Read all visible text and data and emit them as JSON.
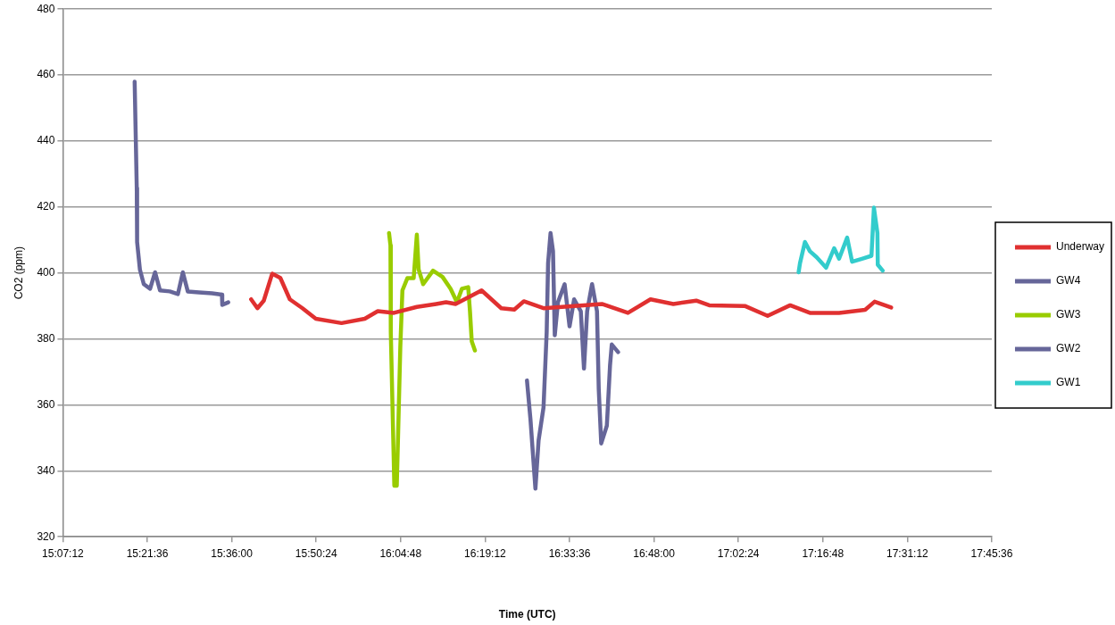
{
  "chart_data": {
    "type": "line",
    "xlabel": "Time (UTC)",
    "ylabel": "CO2 (ppm)",
    "xlim": [
      15.12,
      17.76
    ],
    "xticks": [
      {
        "value": 15.12,
        "label": "15:07:12"
      },
      {
        "value": 15.36,
        "label": "15:21:36"
      },
      {
        "value": 15.6,
        "label": "15:36:00"
      },
      {
        "value": 15.84,
        "label": "15:50:24"
      },
      {
        "value": 16.08,
        "label": "16:04:48"
      },
      {
        "value": 16.32,
        "label": "16:19:12"
      },
      {
        "value": 16.56,
        "label": "16:33:36"
      },
      {
        "value": 16.8,
        "label": "16:48:00"
      },
      {
        "value": 17.04,
        "label": "17:02:24"
      },
      {
        "value": 17.28,
        "label": "17:16:48"
      },
      {
        "value": 17.52,
        "label": "17:31:12"
      },
      {
        "value": 17.76,
        "label": "17:45:36"
      }
    ],
    "ylim": [
      320,
      480
    ],
    "yticks": [
      320,
      340,
      360,
      380,
      400,
      420,
      440,
      460,
      480
    ],
    "grid": "y",
    "legend": "right",
    "marker": "none",
    "line_style": "solid",
    "series": [
      {
        "name": "Underway",
        "color": "#e03030",
        "x": [
          15.655,
          15.673,
          15.691,
          15.715,
          15.738,
          15.765,
          15.801,
          15.839,
          15.912,
          15.978,
          16.015,
          16.061,
          16.126,
          16.181,
          16.209,
          16.236,
          16.31,
          16.366,
          16.403,
          16.43,
          16.486,
          16.652,
          16.726,
          16.79,
          16.855,
          16.92,
          16.957,
          17.058,
          17.123,
          17.187,
          17.243,
          17.326,
          17.4,
          17.427,
          17.474
        ],
        "values": [
          392,
          389.3,
          391.6,
          399.8,
          398.5,
          392,
          389.3,
          386.1,
          384.8,
          386.1,
          388.4,
          387.9,
          389.7,
          390.6,
          391.1,
          390.6,
          394.7,
          389.3,
          388.9,
          391.4,
          389.3,
          390.6,
          387.9,
          392,
          390.6,
          391.6,
          390.2,
          390,
          387,
          390.2,
          387.9,
          387.9,
          388.8,
          391.3,
          389.5
        ]
      },
      {
        "name": "GW4",
        "color": "#666699",
        "x": [
          15.324,
          15.33,
          15.331,
          15.339,
          15.35,
          15.368,
          15.382,
          15.396,
          15.424,
          15.447,
          15.461,
          15.475,
          15.507,
          15.544,
          15.572,
          15.573,
          15.59
        ],
        "values": [
          458,
          425.8,
          409.4,
          401,
          396.6,
          395.2,
          400.2,
          394.7,
          394.4,
          393.6,
          400.2,
          394.4,
          394.1,
          393.8,
          393.4,
          390.3,
          391.1
        ]
      },
      {
        "name": "GW3",
        "color": "#99cc00",
        "x": [
          16.047,
          16.051,
          16.052,
          16.062,
          16.069,
          16.073,
          16.079,
          16.085,
          16.099,
          16.117,
          16.126,
          16.131,
          16.144,
          16.172,
          16.199,
          16.222,
          16.24,
          16.254,
          16.272,
          16.277,
          16.282,
          16.291
        ],
        "values": [
          412.1,
          408.4,
          382,
          335.5,
          335.5,
          352,
          377.4,
          394.7,
          398.4,
          398.4,
          411.6,
          401.1,
          396.6,
          400.7,
          398.8,
          395.2,
          391.1,
          395.2,
          395.7,
          388.4,
          379.3,
          376.5
        ]
      },
      {
        "name": "GW2",
        "color": "#666699",
        "x": [
          16.439,
          16.449,
          16.463,
          16.472,
          16.486,
          16.495,
          16.499,
          16.506,
          16.513,
          16.518,
          16.527,
          16.546,
          16.56,
          16.573,
          16.592,
          16.601,
          16.61,
          16.624,
          16.638,
          16.643,
          16.65,
          16.666,
          16.675,
          16.68,
          16.698
        ],
        "values": [
          367.4,
          355.5,
          334.6,
          349.2,
          359.2,
          382,
          403,
          412.1,
          406.6,
          381.1,
          391.1,
          396.6,
          383.8,
          392,
          388.4,
          371,
          388.4,
          396.6,
          388.4,
          364.7,
          348.3,
          353.7,
          371.9,
          378.3,
          376
        ]
      },
      {
        "name": "GW1",
        "color": "#33cccc",
        "x": [
          17.211,
          17.215,
          17.229,
          17.243,
          17.262,
          17.289,
          17.312,
          17.326,
          17.349,
          17.363,
          17.391,
          17.418,
          17.425,
          17.435,
          17.436,
          17.45
        ],
        "values": [
          400.2,
          403,
          409.4,
          406.6,
          404.8,
          401.6,
          407.5,
          404.3,
          410.7,
          403.4,
          404.3,
          405.2,
          419.8,
          412.1,
          402.5,
          400.7
        ]
      }
    ]
  }
}
